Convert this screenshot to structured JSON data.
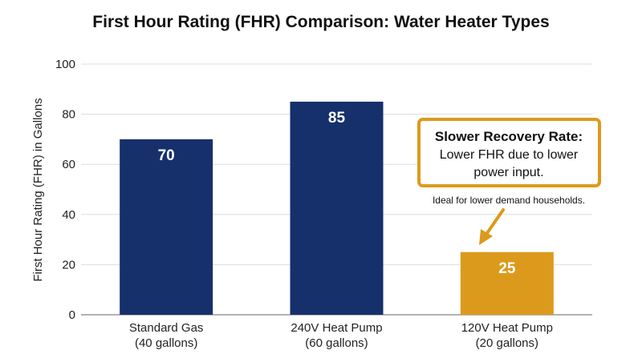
{
  "chart_data": {
    "type": "bar",
    "title": "First Hour Rating (FHR) Comparison: Water Heater Types",
    "xlabel": "",
    "ylabel": "First Hour Rating (FHR) in Gallons",
    "ylim": [
      0,
      100
    ],
    "yticks": [
      0,
      20,
      40,
      60,
      80,
      100
    ],
    "grid": true,
    "categories": [
      [
        "Standard Gas",
        "(40 gallons)"
      ],
      [
        "240V Heat Pump",
        "(60 gallons)"
      ],
      [
        "120V Heat Pump",
        "(20 gallons)"
      ]
    ],
    "values": [
      70,
      85,
      25
    ],
    "bar_colors": [
      "#16306b",
      "#16306b",
      "#dc9a1c"
    ],
    "value_labels": [
      "70",
      "85",
      "25"
    ],
    "annotation": {
      "title": "Slower Recovery Rate:",
      "lines": [
        "Lower FHR due to lower",
        "power input."
      ],
      "note": "Ideal for lower demand households.",
      "target_category_index": 2,
      "border_color": "#dc9a1c"
    }
  }
}
